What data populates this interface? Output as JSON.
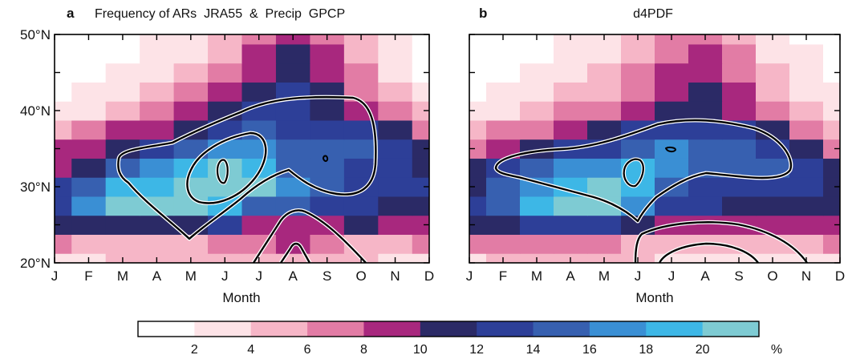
{
  "figure": {
    "colorbar": {
      "ticks": [
        "2",
        "4",
        "6",
        "8",
        "10",
        "12",
        "14",
        "16",
        "18",
        "20"
      ],
      "unit": "%",
      "colors": [
        "#ffffff",
        "#fde3e7",
        "#f6b6c7",
        "#e27ca5",
        "#a8287e",
        "#2b2a66",
        "#2d3f98",
        "#3760b0",
        "#3a8fd4",
        "#3db7e6",
        "#7ecbd3"
      ]
    }
  },
  "chart_data": [
    {
      "type": "heatmap",
      "panel_letter": "a",
      "title": "Frequency of ARs  JRA55  &  Precip  GPCP",
      "xlabel": "Month",
      "ylabel": "",
      "x_categories": [
        "J",
        "F",
        "M",
        "A",
        "M",
        "J",
        "J",
        "A",
        "S",
        "O",
        "N",
        "D"
      ],
      "y_ticks": [
        "20°N",
        "30°N",
        "40°N",
        "50°N"
      ],
      "ylim": [
        20,
        50
      ],
      "lat_rows": [
        20,
        22.5,
        25,
        27.5,
        30,
        32.5,
        35,
        37.5,
        40,
        42.5,
        45,
        47.5,
        50
      ],
      "values": [
        [
          2,
          3,
          4,
          4,
          4,
          4,
          5,
          5,
          5,
          4,
          3,
          2
        ],
        [
          7,
          5,
          4,
          5,
          5,
          6,
          7,
          8,
          7,
          5,
          4,
          6
        ],
        [
          10,
          11,
          11,
          11,
          11,
          12,
          9,
          8,
          9,
          10,
          9,
          9
        ],
        [
          13,
          17,
          20,
          21,
          20,
          18,
          15,
          14,
          13,
          12,
          11,
          11
        ],
        [
          13,
          15,
          18,
          19,
          20,
          21,
          20,
          16,
          15,
          13,
          12,
          12
        ],
        [
          9,
          11,
          15,
          17,
          19,
          20,
          19,
          15,
          14,
          13,
          12,
          11
        ],
        [
          8,
          9,
          11,
          13,
          15,
          17,
          16,
          14,
          14,
          14,
          12,
          10
        ],
        [
          4,
          6,
          8,
          9,
          11,
          13,
          14,
          13,
          13,
          12,
          10,
          7
        ],
        [
          2,
          3,
          5,
          6,
          8,
          10,
          12,
          13,
          11,
          9,
          6,
          4
        ],
        [
          1,
          2,
          3,
          4,
          6,
          8,
          10,
          12,
          10,
          7,
          4,
          2
        ],
        [
          0,
          1,
          2,
          3,
          4,
          6,
          9,
          11,
          9,
          6,
          3,
          1
        ],
        [
          0,
          1,
          1,
          2,
          3,
          5,
          8,
          10,
          8,
          5,
          3,
          1
        ],
        [
          0,
          0,
          1,
          2,
          3,
          5,
          7,
          9,
          7,
          4,
          2,
          1
        ]
      ],
      "contour_lines": [
        "Precip"
      ]
    },
    {
      "type": "heatmap",
      "panel_letter": "b",
      "title": "d4PDF",
      "xlabel": "Month",
      "ylabel": "",
      "x_categories": [
        "J",
        "F",
        "M",
        "A",
        "M",
        "J",
        "J",
        "A",
        "S",
        "O",
        "N",
        "D"
      ],
      "y_ticks": [
        "20°N",
        "30°N",
        "40°N",
        "50°N"
      ],
      "ylim": [
        20,
        50
      ],
      "lat_rows": [
        20,
        22.5,
        25,
        27.5,
        30,
        32.5,
        35,
        37.5,
        40,
        42.5,
        45,
        47.5,
        50
      ],
      "values": [
        [
          3,
          4,
          4,
          4,
          4,
          4,
          3,
          3,
          3,
          3,
          3,
          3
        ],
        [
          7,
          7,
          6,
          6,
          6,
          5,
          5,
          5,
          5,
          5,
          5,
          6
        ],
        [
          10,
          11,
          12,
          13,
          13,
          11,
          9,
          8,
          8,
          8,
          8,
          9
        ],
        [
          12,
          15,
          18,
          20,
          21,
          17,
          13,
          12,
          11,
          11,
          11,
          11
        ],
        [
          11,
          14,
          17,
          19,
          20,
          18,
          15,
          13,
          12,
          12,
          12,
          11
        ],
        [
          10,
          12,
          14,
          16,
          17,
          18,
          17,
          15,
          14,
          14,
          12,
          10
        ],
        [
          7,
          9,
          11,
          12,
          13,
          15,
          16,
          15,
          14,
          13,
          10,
          7
        ],
        [
          4,
          6,
          7,
          9,
          10,
          12,
          13,
          13,
          12,
          10,
          7,
          4
        ],
        [
          2,
          3,
          4,
          6,
          7,
          9,
          11,
          11,
          9,
          7,
          5,
          3
        ],
        [
          1,
          2,
          3,
          4,
          5,
          7,
          9,
          10,
          8,
          5,
          3,
          2
        ],
        [
          0,
          1,
          2,
          3,
          4,
          6,
          8,
          9,
          7,
          4,
          2,
          1
        ],
        [
          0,
          1,
          1,
          2,
          3,
          5,
          7,
          8,
          6,
          3,
          2,
          1
        ],
        [
          0,
          0,
          1,
          2,
          3,
          4,
          6,
          7,
          5,
          3,
          1,
          0
        ]
      ],
      "contour_lines": [
        "Precip"
      ]
    }
  ]
}
